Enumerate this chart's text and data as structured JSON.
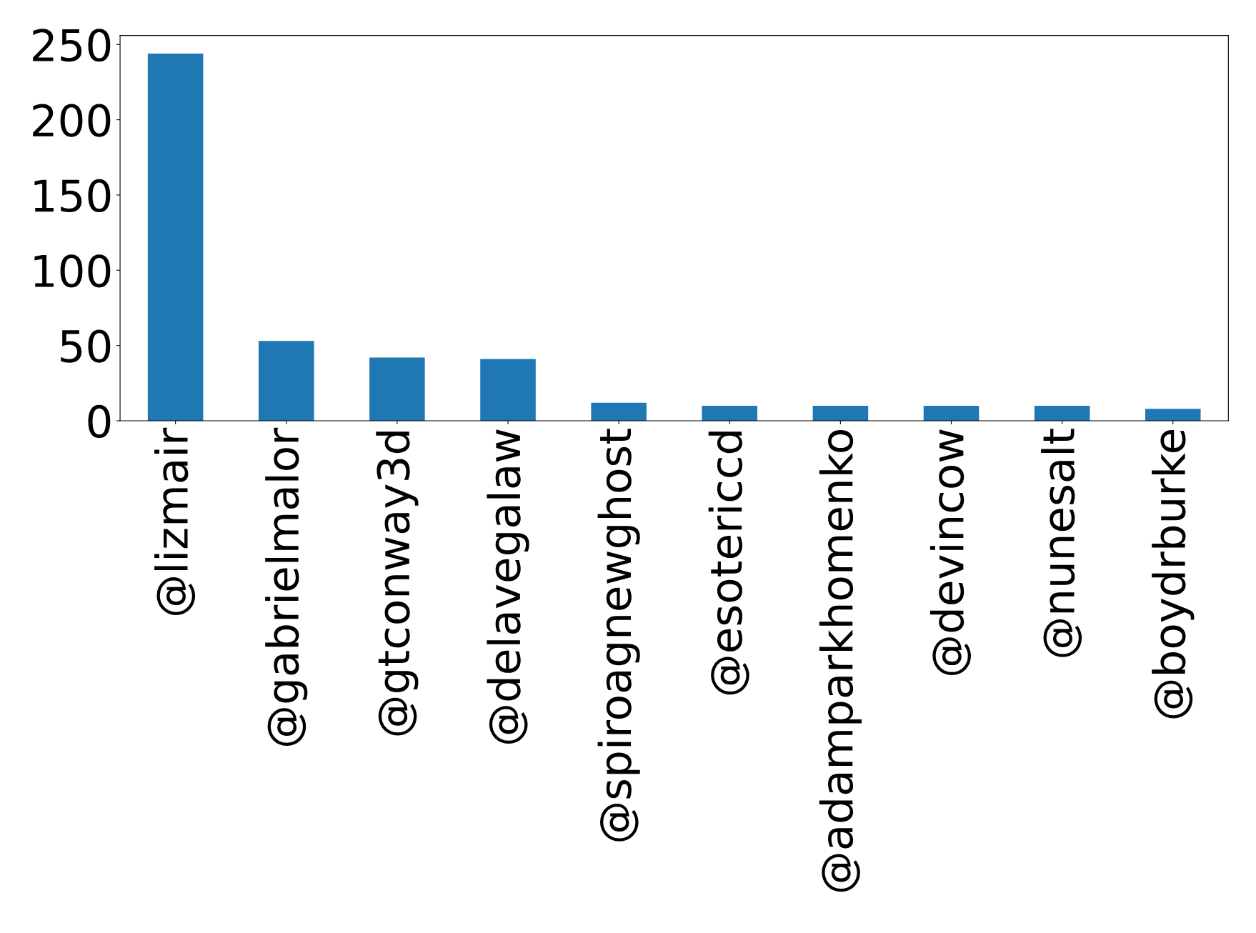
{
  "chart_data": {
    "type": "bar",
    "categories": [
      "@lizmair",
      "@gabrielmalor",
      "@gtconway3d",
      "@delavegalaw",
      "@spiroagnewghost",
      "@esotericcd",
      "@adamparkhomenko",
      "@devincow",
      "@nunesalt",
      "@boydrburke"
    ],
    "values": [
      244,
      53,
      42,
      41,
      12,
      10,
      10,
      10,
      10,
      8
    ],
    "color": "#1f77b4",
    "ylim": [
      0,
      256
    ],
    "yticks": [
      0,
      50,
      100,
      150,
      200,
      250
    ],
    "grid": false
  }
}
